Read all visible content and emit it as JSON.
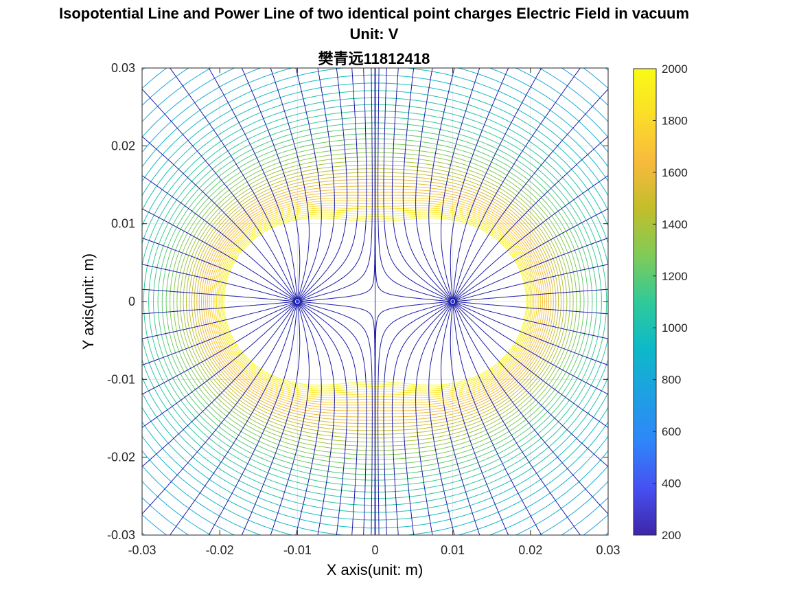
{
  "chart_data": {
    "type": "contour",
    "title": "Isopotential Line and Power Line of two identical point charges Electric Field in vacuum",
    "subtitle": "Unit: V",
    "author": "樊青远11812418",
    "xlabel": "X axis(unit: m)",
    "ylabel": "Y axis(unit: m)",
    "xlim": [
      -0.03,
      0.03
    ],
    "ylim": [
      -0.03,
      0.03
    ],
    "xticks": [
      -0.03,
      -0.02,
      -0.01,
      0,
      0.01,
      0.02,
      0.03
    ],
    "xtick_labels": [
      "-0.03",
      "-0.02",
      "-0.01",
      "0",
      "0.01",
      "0.02",
      "0.03"
    ],
    "yticks": [
      -0.03,
      -0.02,
      -0.01,
      0,
      0.01,
      0.02,
      0.03
    ],
    "ytick_labels": [
      "-0.03",
      "-0.02",
      "-0.01",
      "0",
      "0.01",
      "0.02",
      "0.03"
    ],
    "grid": true,
    "charges": [
      {
        "x": -0.01,
        "y": 0
      },
      {
        "x": 0.01,
        "y": 0
      }
    ],
    "potential_levels": {
      "min": 200,
      "max": 2000,
      "count": 60
    },
    "field_lines_per_charge": 36,
    "colorbar": {
      "min": 200,
      "max": 2000,
      "ticks": [
        200,
        400,
        600,
        800,
        1000,
        1200,
        1400,
        1600,
        1800,
        2000
      ],
      "tick_labels": [
        "200",
        "400",
        "600",
        "800",
        "1000",
        "1200",
        "1400",
        "1600",
        "1800",
        "2000"
      ],
      "colormap": "parula"
    },
    "field_line_color": "#1a1aa6"
  }
}
